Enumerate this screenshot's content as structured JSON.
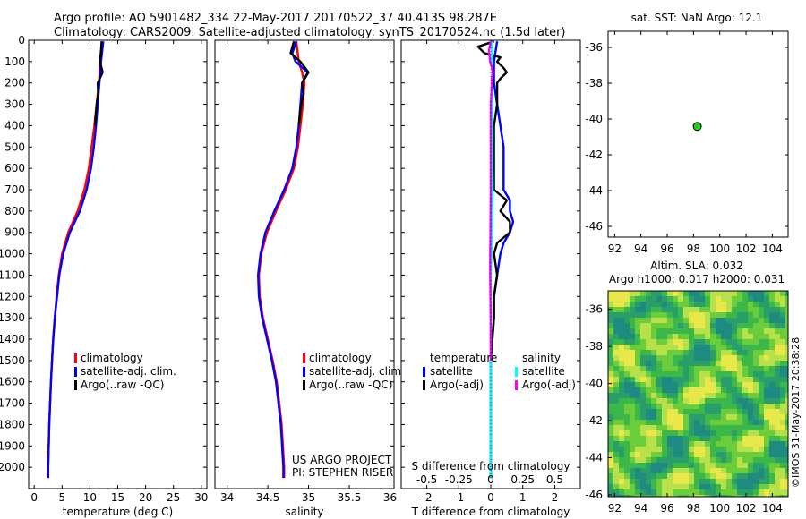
{
  "header": {
    "line1": "Argo profile: AO 5901482_334 22-May-2017 20170522_37 40.413S 98.287E",
    "line2": "Climatology: CARS2009. Satellite-adjusted climatology: synTS_20170524.nc (1.5d later)"
  },
  "colors": {
    "climatology": "#ff0000",
    "satellite": "#0000ff",
    "argo": "#000000",
    "satellite_salinity": "#00ffff",
    "argo_salinity": "#ff00ff",
    "float_marker": "#22cc22"
  },
  "project": {
    "line1": "US ARGO PROJECT",
    "line2": "PI: STEPHEN RISER"
  },
  "stamp": "©IMOS 31-May-2017 20:38:28",
  "chart_data": [
    {
      "id": "temperature",
      "type": "line",
      "xlabel": "temperature (deg C)",
      "ylim": [
        2100,
        0
      ],
      "xlim": [
        -1,
        31
      ],
      "xticks": [
        0,
        5,
        10,
        15,
        20,
        25,
        30
      ],
      "yticks": [
        0,
        100,
        200,
        300,
        400,
        500,
        600,
        700,
        800,
        900,
        1000,
        1100,
        1200,
        1300,
        1400,
        1500,
        1600,
        1700,
        1800,
        1900,
        2000
      ],
      "legend": {
        "placement": "lower-right",
        "entries": [
          "climatology",
          "satellite-adj. clim.",
          "Argo(..raw -QC)"
        ]
      },
      "series": [
        {
          "name": "climatology",
          "color": "#ff0000",
          "depth": [
            5,
            100,
            200,
            300,
            400,
            500,
            600,
            700,
            800,
            900,
            1000,
            1100,
            1200,
            1300,
            1400,
            1500,
            1600,
            1800,
            2000,
            2050
          ],
          "values": [
            12.2,
            11.9,
            11.6,
            11.2,
            10.8,
            10.3,
            9.8,
            9.0,
            7.8,
            6.1,
            5.0,
            4.4,
            4.0,
            3.7,
            3.4,
            3.2,
            3.0,
            2.7,
            2.5,
            2.5
          ]
        },
        {
          "name": "satellite-adj. clim.",
          "color": "#0000ff",
          "depth": [
            5,
            100,
            200,
            300,
            400,
            500,
            600,
            700,
            800,
            900,
            1000,
            1100,
            1200,
            1300,
            1400,
            1500,
            1600,
            1800,
            2000,
            2050
          ],
          "values": [
            12.4,
            12.0,
            11.7,
            11.4,
            11.1,
            10.7,
            10.2,
            9.4,
            8.2,
            6.4,
            5.2,
            4.5,
            4.1,
            3.7,
            3.4,
            3.2,
            3.0,
            2.7,
            2.5,
            2.5
          ]
        },
        {
          "name": "Argo(..raw -QC)",
          "color": "#000000",
          "depth": [
            5,
            50,
            100,
            150,
            200,
            250,
            300,
            400
          ],
          "values": [
            12.1,
            12.0,
            11.8,
            12.3,
            11.4,
            11.5,
            11.2,
            10.9
          ]
        }
      ]
    },
    {
      "id": "salinity",
      "type": "line",
      "xlabel": "salinity",
      "ylim": [
        2100,
        0
      ],
      "xlim": [
        33.85,
        36.05
      ],
      "xticks": [
        34,
        34.5,
        35,
        35.5,
        36
      ],
      "legend": {
        "placement": "lower-right",
        "entries": [
          "climatology",
          "satellite-adj. clim.",
          "Argo(..raw -QC)"
        ]
      },
      "series": [
        {
          "name": "climatology",
          "color": "#ff0000",
          "depth": [
            5,
            100,
            150,
            200,
            300,
            400,
            500,
            600,
            700,
            800,
            900,
            1000,
            1100,
            1200,
            1300,
            1400,
            1500,
            1600,
            1800,
            2000,
            2050
          ],
          "values": [
            34.85,
            34.88,
            34.92,
            34.95,
            34.93,
            34.9,
            34.87,
            34.82,
            34.72,
            34.6,
            34.49,
            34.42,
            34.39,
            34.4,
            34.44,
            34.5,
            34.56,
            34.61,
            34.67,
            34.7,
            34.7
          ]
        },
        {
          "name": "satellite-adj. clim.",
          "color": "#0000ff",
          "depth": [
            5,
            60,
            100,
            150,
            200,
            300,
            400,
            500,
            600,
            700,
            800,
            900,
            1000,
            1100,
            1200,
            1300,
            1400,
            1500,
            1600,
            1800,
            2000,
            2050
          ],
          "values": [
            34.85,
            34.8,
            34.84,
            34.99,
            34.92,
            34.9,
            34.88,
            34.85,
            34.8,
            34.7,
            34.58,
            34.47,
            34.41,
            34.38,
            34.39,
            34.43,
            34.49,
            34.55,
            34.6,
            34.66,
            34.69,
            34.69
          ]
        },
        {
          "name": "Argo(..raw -QC)",
          "color": "#000000",
          "depth": [
            5,
            60,
            100,
            150,
            200,
            250,
            300,
            400
          ],
          "values": [
            34.82,
            34.78,
            34.9,
            35.0,
            34.92,
            34.94,
            34.91,
            34.88
          ]
        }
      ]
    },
    {
      "id": "differences",
      "type": "line",
      "xlabel": "T difference from climatology",
      "top_label": "S difference from climatology",
      "ylim": [
        2100,
        0
      ],
      "xlim": [
        -2.8,
        2.8
      ],
      "xticks": [
        -2,
        -1,
        0,
        1,
        2
      ],
      "top_ticks": [
        "-0.5",
        "-0.25",
        "0",
        "0.25",
        "0.5"
      ],
      "top_tick_values": [
        -0.5,
        -0.25,
        0,
        0.25,
        0.5
      ],
      "legend": {
        "placement": "lower-middle",
        "temperature_title": "temperature",
        "salinity_title": "salinity",
        "temperature_entries": [
          "satellite",
          "Argo(-adj)"
        ],
        "salinity_entries": [
          "satellite",
          "Argo(-adj)"
        ]
      },
      "series": [
        {
          "name": "temperature satellite",
          "color": "#0000ff",
          "depth": [
            5,
            100,
            200,
            300,
            400,
            500,
            600,
            700,
            750,
            800,
            850,
            900,
            950,
            1000,
            1100,
            1200,
            1300,
            1500,
            1800,
            2050
          ],
          "values": [
            0.2,
            0.1,
            0.1,
            0.2,
            0.3,
            0.4,
            0.4,
            0.4,
            0.6,
            0.6,
            0.7,
            0.6,
            0.4,
            0.3,
            0.2,
            0.1,
            0.1,
            0.0,
            0.0,
            0.0
          ]
        },
        {
          "name": "temperature Argo(-adj)",
          "color": "#000000",
          "depth": [
            5,
            30,
            60,
            80,
            100,
            130,
            150,
            180,
            200,
            250,
            300,
            400,
            500,
            700,
            750,
            800,
            850,
            900,
            950,
            1000,
            1100,
            1200,
            1300,
            1500,
            1800,
            2050
          ],
          "values": [
            0.1,
            -0.4,
            -0.2,
            0.3,
            0.2,
            0.4,
            0.5,
            0.3,
            0.2,
            0.2,
            0.2,
            0.1,
            0.1,
            0.1,
            0.5,
            0.3,
            0.6,
            0.6,
            0.2,
            0.1,
            0.2,
            0.1,
            0.1,
            0.0,
            0.0,
            0.0
          ]
        },
        {
          "name": "salinity satellite",
          "color": "#00ffff",
          "depth": [
            5,
            100,
            200,
            300,
            400,
            500,
            600,
            700,
            800,
            900,
            1000,
            1100,
            1200,
            1300,
            1500,
            1800,
            2050
          ],
          "values": [
            0.03,
            0.04,
            0.05,
            0.04,
            0.05,
            0.05,
            0.05,
            0.06,
            0.05,
            0.04,
            0.02,
            0.0,
            -0.01,
            -0.01,
            0.0,
            0.0,
            0.0
          ]
        },
        {
          "name": "salinity Argo(-adj)",
          "color": "#ff00ff",
          "depth": [
            5,
            50,
            100,
            130,
            150,
            180,
            200,
            300,
            400,
            500,
            700,
            900,
            1000,
            1100,
            1200,
            1300,
            1500
          ],
          "values": [
            0.0,
            -0.06,
            -0.02,
            0.04,
            0.07,
            0.03,
            0.04,
            0.0,
            0.0,
            0.0,
            0.0,
            -0.01,
            -0.02,
            -0.02,
            -0.01,
            0.0,
            0.0
          ]
        }
      ]
    },
    {
      "id": "location",
      "type": "scatter",
      "title": "sat. SST: NaN Argo: 12.1",
      "xlim": [
        91.5,
        105.2
      ],
      "ylim": [
        -46.6,
        -35.1
      ],
      "xticks": [
        92,
        94,
        96,
        98,
        100,
        102,
        104
      ],
      "yticks": [
        -36,
        -38,
        -40,
        -42,
        -44,
        -46
      ],
      "points": [
        {
          "x": 98.287,
          "y": -40.413
        }
      ]
    },
    {
      "id": "sla",
      "type": "heatmap",
      "title": "Altim. SLA: 0.032",
      "subtitle": "Argo h1000: 0.017 h2000: 0.031",
      "xlim": [
        91.5,
        105.2
      ],
      "ylim": [
        -46.1,
        -35.0
      ],
      "xticks": [
        92,
        94,
        96,
        98,
        100,
        102,
        104
      ],
      "yticks": [
        -36,
        -38,
        -40,
        -42,
        -44,
        -46
      ]
    }
  ]
}
